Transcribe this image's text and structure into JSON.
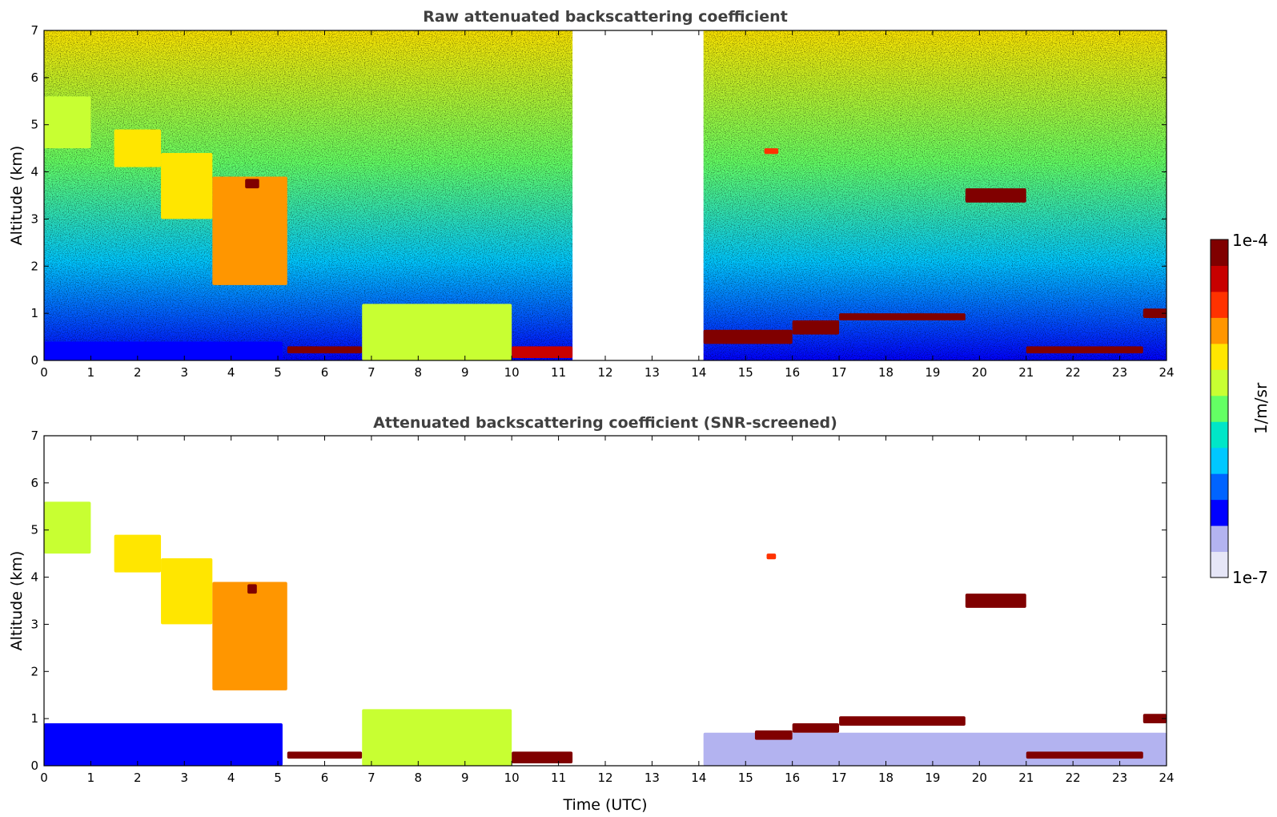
{
  "chart_data": [
    {
      "type": "heatmap",
      "title": "Raw attenuated backscattering coefficient",
      "xlabel": "",
      "ylabel": "Altitude (km)",
      "xlim": [
        0,
        24
      ],
      "ylim": [
        0,
        7
      ],
      "xticks": [
        "0",
        "1",
        "2",
        "3",
        "4",
        "5",
        "6",
        "7",
        "8",
        "9",
        "10",
        "11",
        "12",
        "13",
        "14",
        "15",
        "16",
        "17",
        "18",
        "19",
        "20",
        "21",
        "22",
        "23",
        "24"
      ],
      "yticks": [
        "0",
        "1",
        "2",
        "3",
        "4",
        "5",
        "6",
        "7"
      ],
      "grid": false,
      "no_data_intervals": [
        [
          11.3,
          14.1
        ]
      ],
      "features": [
        {
          "t0": 0.0,
          "t1": 5.1,
          "z0": 0.0,
          "z1": 0.4,
          "level": 0.2
        },
        {
          "t0": 5.2,
          "t1": 6.8,
          "z0": 0.15,
          "z1": 0.3,
          "level": 0.97
        },
        {
          "t0": 6.8,
          "t1": 10.0,
          "z0": 0.0,
          "z1": 1.2,
          "level": 0.6
        },
        {
          "t0": 10.0,
          "t1": 11.3,
          "z0": 0.05,
          "z1": 0.3,
          "level": 0.9
        },
        {
          "t0": 14.1,
          "t1": 16.0,
          "z0": 0.35,
          "z1": 0.65,
          "level": 0.97
        },
        {
          "t0": 16.0,
          "t1": 17.0,
          "z0": 0.55,
          "z1": 0.85,
          "level": 0.97
        },
        {
          "t0": 17.0,
          "t1": 19.7,
          "z0": 0.85,
          "z1": 1.0,
          "level": 0.97
        },
        {
          "t0": 19.7,
          "t1": 21.0,
          "z0": 3.35,
          "z1": 3.65,
          "level": 0.98
        },
        {
          "t0": 21.0,
          "t1": 23.5,
          "z0": 0.15,
          "z1": 0.3,
          "level": 0.97
        },
        {
          "t0": 23.5,
          "t1": 24.0,
          "z0": 0.9,
          "z1": 1.1,
          "level": 0.97
        },
        {
          "t0": 0.0,
          "t1": 1.0,
          "z0": 4.5,
          "z1": 5.6,
          "level": 0.6
        },
        {
          "t0": 1.5,
          "t1": 2.5,
          "z0": 4.1,
          "z1": 4.9,
          "level": 0.65
        },
        {
          "t0": 2.5,
          "t1": 3.6,
          "z0": 3.0,
          "z1": 4.4,
          "level": 0.7
        },
        {
          "t0": 3.6,
          "t1": 5.2,
          "z0": 1.6,
          "z1": 3.9,
          "level": 0.72
        },
        {
          "t0": 4.3,
          "t1": 4.6,
          "z0": 3.65,
          "z1": 3.85,
          "level": 0.98
        },
        {
          "t0": 15.4,
          "t1": 15.7,
          "z0": 4.38,
          "z1": 4.5,
          "level": 0.8
        }
      ]
    },
    {
      "type": "heatmap",
      "title": "Attenuated backscattering coefficient (SNR-screened)",
      "xlabel": "Time (UTC)",
      "ylabel": "Altitude (km)",
      "xlim": [
        0,
        24
      ],
      "ylim": [
        0,
        7
      ],
      "xticks": [
        "0",
        "1",
        "2",
        "3",
        "4",
        "5",
        "6",
        "7",
        "8",
        "9",
        "10",
        "11",
        "12",
        "13",
        "14",
        "15",
        "16",
        "17",
        "18",
        "19",
        "20",
        "21",
        "22",
        "23",
        "24"
      ],
      "yticks": [
        "0",
        "1",
        "2",
        "3",
        "4",
        "5",
        "6",
        "7"
      ],
      "grid": false,
      "no_data_intervals": [
        [
          11.3,
          14.1
        ]
      ],
      "features": [
        {
          "t0": 0.0,
          "t1": 5.1,
          "z0": 0.0,
          "z1": 0.9,
          "level": 0.18
        },
        {
          "t0": 5.2,
          "t1": 6.8,
          "z0": 0.15,
          "z1": 0.3,
          "level": 1.0
        },
        {
          "t0": 6.8,
          "t1": 10.0,
          "z0": 0.0,
          "z1": 1.2,
          "level": 0.55
        },
        {
          "t0": 10.0,
          "t1": 11.3,
          "z0": 0.05,
          "z1": 0.3,
          "level": 1.0
        },
        {
          "t0": 14.1,
          "t1": 24.0,
          "z0": 0.0,
          "z1": 0.7,
          "level": 0.12
        },
        {
          "t0": 15.2,
          "t1": 16.0,
          "z0": 0.55,
          "z1": 0.75,
          "level": 1.0
        },
        {
          "t0": 16.0,
          "t1": 17.0,
          "z0": 0.7,
          "z1": 0.9,
          "level": 1.0
        },
        {
          "t0": 17.0,
          "t1": 19.7,
          "z0": 0.85,
          "z1": 1.05,
          "level": 1.0
        },
        {
          "t0": 19.7,
          "t1": 21.0,
          "z0": 3.35,
          "z1": 3.65,
          "level": 1.0
        },
        {
          "t0": 21.0,
          "t1": 23.5,
          "z0": 0.15,
          "z1": 0.3,
          "level": 1.0
        },
        {
          "t0": 23.5,
          "t1": 24.0,
          "z0": 0.9,
          "z1": 1.1,
          "level": 1.0
        },
        {
          "t0": 0.0,
          "t1": 1.0,
          "z0": 4.5,
          "z1": 5.6,
          "level": 0.6
        },
        {
          "t0": 1.5,
          "t1": 2.5,
          "z0": 4.1,
          "z1": 4.9,
          "level": 0.65
        },
        {
          "t0": 2.5,
          "t1": 3.6,
          "z0": 3.0,
          "z1": 4.4,
          "level": 0.7
        },
        {
          "t0": 3.6,
          "t1": 5.2,
          "z0": 1.6,
          "z1": 3.9,
          "level": 0.72
        },
        {
          "t0": 4.35,
          "t1": 4.55,
          "z0": 3.65,
          "z1": 3.85,
          "level": 1.0
        },
        {
          "t0": 15.45,
          "t1": 15.65,
          "z0": 4.38,
          "z1": 4.5,
          "level": 0.8
        }
      ]
    }
  ],
  "colorbar": {
    "label": "1/m/sr",
    "max_label": "1e-4",
    "min_label": "1e-7",
    "colors": [
      "#e6e6f7",
      "#b3b3f0",
      "#0000ff",
      "#0064ff",
      "#00c8ff",
      "#00e6c8",
      "#64ff64",
      "#c8ff32",
      "#ffe600",
      "#ff9600",
      "#ff3200",
      "#c80000",
      "#800000"
    ]
  }
}
